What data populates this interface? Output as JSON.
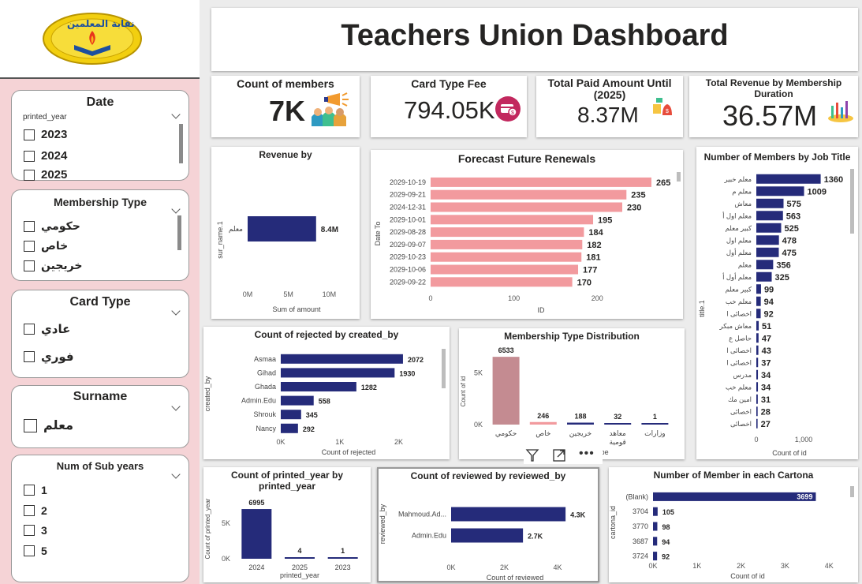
{
  "logo": {
    "alt_text": "نقابة المعلمين",
    "caption": "نقابة المعلمين"
  },
  "header": {
    "title": "Teachers Union Dashboard"
  },
  "slicers": {
    "date": {
      "title": "Date",
      "field": "printed_year",
      "options": [
        "2023",
        "2024",
        "2025"
      ]
    },
    "membership_type": {
      "title": "Membership Type",
      "options": [
        "حكومي",
        "خاص",
        "خريجين"
      ]
    },
    "card_type": {
      "title": "Card Type",
      "options": [
        "عادي",
        "فوري"
      ]
    },
    "surname": {
      "title": "Surname",
      "options": [
        "معلم"
      ]
    },
    "num_sub_years": {
      "title": "Num of Sub years",
      "options": [
        "1",
        "2",
        "3",
        "5"
      ]
    }
  },
  "kpis": {
    "members": {
      "title": "Count of members",
      "value": "7K"
    },
    "card_fee": {
      "title": "Card Type Fee",
      "value": "794.05K"
    },
    "paid": {
      "title": "Total Paid Amount Until (2025)",
      "value": "8.37M"
    },
    "revenue": {
      "title": "Total Revenue by Membership Duration",
      "value": "36.57M"
    }
  },
  "colors": {
    "navy": "#252b7a",
    "salmon": "#f29a9e",
    "mauve": "#c48b91",
    "pink_bg": "#f5d3d6"
  },
  "chart_data": [
    {
      "id": "revenue_by",
      "type": "bar",
      "orientation": "horizontal",
      "title": "Revenue by",
      "xlabel": "Sum of amount",
      "ylabel": "sur_name.1",
      "categories": [
        "معلم"
      ],
      "values": [
        8.4
      ],
      "data_labels": [
        "8.4M"
      ],
      "xlim": [
        0,
        12
      ],
      "xticks": [
        "0M",
        "5M",
        "10M"
      ],
      "xtick_values": [
        0,
        5,
        10
      ]
    },
    {
      "id": "forecast",
      "type": "bar",
      "orientation": "horizontal",
      "title": "Forecast Future Renewals",
      "xlabel": "ID",
      "ylabel": "Date To",
      "categories": [
        "2029-10-19",
        "2029-09-21",
        "2024-12-31",
        "2029-10-01",
        "2029-08-28",
        "2029-09-07",
        "2029-10-23",
        "2029-10-06",
        "2029-09-22"
      ],
      "values": [
        265,
        235,
        230,
        195,
        184,
        182,
        181,
        177,
        170
      ],
      "xlim": [
        0,
        265
      ],
      "xticks": [
        "0",
        "100",
        "200"
      ],
      "xtick_values": [
        0,
        100,
        200
      ]
    },
    {
      "id": "job_title",
      "type": "bar",
      "orientation": "horizontal",
      "title": "Number of Members by Job Title",
      "xlabel": "Count of id",
      "ylabel": "title.1",
      "categories": [
        "معلم خبير",
        "معلم م",
        "معاش",
        "معلم اول أ",
        "كبير معلم",
        "معلم اول",
        "معلم أول",
        "معلم",
        "معلم أول أ",
        "كبير معلم",
        "معلم خب",
        "اخصائى ا",
        "معاش مبكر",
        "حاصل ع",
        "اخصائى ا",
        "اخصائى ا",
        "مدرس",
        "معلم خب",
        "امين مك",
        "اخصائى",
        "اخصائى"
      ],
      "values": [
        1360,
        1009,
        575,
        563,
        525,
        478,
        475,
        356,
        325,
        99,
        94,
        92,
        51,
        47,
        43,
        37,
        34,
        34,
        31,
        28,
        27
      ],
      "xlim": [
        0,
        1400
      ],
      "xticks": [
        "0",
        "1,000"
      ],
      "xtick_values": [
        0,
        1000
      ]
    },
    {
      "id": "rejected",
      "type": "bar",
      "orientation": "horizontal",
      "title": "Count of rejected by created_by",
      "xlabel": "Count of rejected",
      "ylabel": "created_by",
      "categories": [
        "Asmaa",
        "Gihad",
        "Ghada",
        "Admin.Edu",
        "Shrouk",
        "Nancy"
      ],
      "values": [
        2072,
        1930,
        1282,
        558,
        345,
        292
      ],
      "xlim": [
        0,
        2300
      ],
      "xticks": [
        "0K",
        "1K",
        "2K"
      ],
      "xtick_values": [
        0,
        1000,
        2000
      ]
    },
    {
      "id": "membership_dist",
      "type": "bar",
      "orientation": "vertical",
      "title": "Membership Type Distribution",
      "xlabel": "Membership Type",
      "ylabel": "Count of id",
      "categories": [
        "حكومي",
        "خاص",
        "خريجين",
        "معاهد قومية",
        "وزارات"
      ],
      "values": [
        6533,
        246,
        188,
        32,
        1
      ],
      "ylim": [
        0,
        7000
      ],
      "yticks": [
        "0K",
        "5K"
      ],
      "ytick_values": [
        0,
        5000
      ]
    },
    {
      "id": "printed_year",
      "type": "bar",
      "orientation": "vertical",
      "title": "Count of printed_year by printed_year",
      "xlabel": "printed_year",
      "ylabel": "Count of printed_year",
      "categories": [
        "2024",
        "2025",
        "2023"
      ],
      "values": [
        6995,
        4,
        1
      ],
      "ylim": [
        0,
        8000
      ],
      "yticks": [
        "0K",
        "5K"
      ],
      "ytick_values": [
        0,
        5000
      ]
    },
    {
      "id": "reviewed",
      "type": "bar",
      "orientation": "horizontal",
      "title": "Count of reviewed by reviewed_by",
      "xlabel": "Count of reviewed",
      "ylabel": "reviewed_by",
      "categories": [
        "Mahmoud.Ad...",
        "Admin.Edu"
      ],
      "values": [
        4300,
        2700
      ],
      "data_labels": [
        "4.3K",
        "2.7K"
      ],
      "xlim": [
        0,
        4800
      ],
      "xticks": [
        "0K",
        "2K",
        "4K"
      ],
      "xtick_values": [
        0,
        2000,
        4000
      ]
    },
    {
      "id": "cartona",
      "type": "bar",
      "orientation": "horizontal",
      "title": "Number of Member in each Cartona",
      "xlabel": "Count of id",
      "ylabel": "cartona_id",
      "categories": [
        "(Blank)",
        "3704",
        "3770",
        "3687",
        "3724"
      ],
      "values": [
        3699,
        105,
        98,
        94,
        92
      ],
      "xlim": [
        0,
        4300
      ],
      "xticks": [
        "0K",
        "1K",
        "2K",
        "3K",
        "4K"
      ],
      "xtick_values": [
        0,
        1000,
        2000,
        3000,
        4000
      ]
    }
  ],
  "visual_header": {
    "filter_icon": "filter-icon",
    "focus_icon": "focus-mode-icon",
    "more_icon": "more-options-icon"
  }
}
